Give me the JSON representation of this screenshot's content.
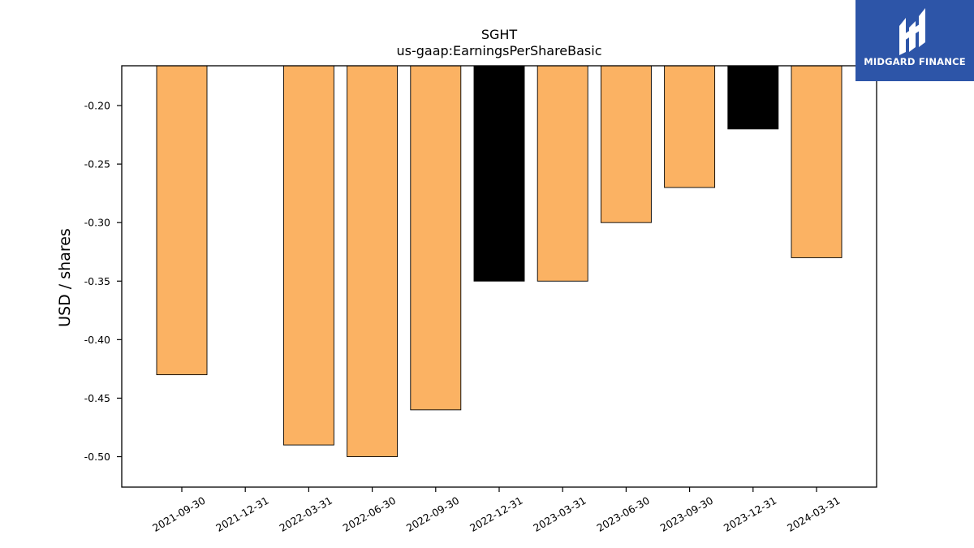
{
  "chart_data": {
    "type": "bar",
    "title": "SGHT",
    "subtitle": "us-gaap:EarningsPerShareBasic",
    "ylabel": "USD / shares",
    "xlabel": "",
    "ylim": [
      -0.526,
      -0.166
    ],
    "yticks": [
      -0.2,
      -0.25,
      -0.3,
      -0.35,
      -0.4,
      -0.45,
      -0.5
    ],
    "ytick_labels": [
      "-0.20",
      "-0.25",
      "-0.30",
      "-0.35",
      "-0.40",
      "-0.45",
      "-0.50"
    ],
    "categories": [
      "2021-09-30",
      "2021-12-31",
      "2022-03-31",
      "2022-06-30",
      "2022-09-30",
      "2022-12-31",
      "2023-03-31",
      "2023-06-30",
      "2023-09-30",
      "2023-12-31",
      "2024-03-31"
    ],
    "values": [
      -0.43,
      null,
      -0.49,
      -0.5,
      -0.46,
      -0.35,
      -0.35,
      -0.3,
      -0.27,
      -0.22,
      -0.33
    ],
    "bar_colors": [
      "#fbb263",
      null,
      "#fbb263",
      "#fbb263",
      "#fbb263",
      "#000000",
      "#fbb263",
      "#fbb263",
      "#fbb263",
      "#000000",
      "#fbb263"
    ],
    "grid": false
  },
  "logo": {
    "text": "MIDGARD FINANCE",
    "background": "#2d55a8"
  }
}
